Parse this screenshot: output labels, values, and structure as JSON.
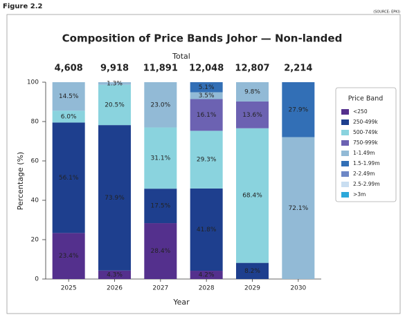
{
  "figure_label": "Figure 2.2",
  "source": "(SOURCE: EPKI)",
  "chart_data": {
    "type": "stacked_bar",
    "title": "Composition of Price Bands Johor — Non-landed",
    "x_label": "Year",
    "y_label": "Percentage (%)",
    "categories": [
      "2025",
      "2026",
      "2027",
      "2028",
      "2029",
      "2030"
    ],
    "totals": {
      "label": "Total",
      "values": [
        4608,
        9918,
        11891,
        12048,
        12807,
        2214
      ],
      "value_labels": [
        "4,608",
        "9,918",
        "11,891",
        "12,048",
        "12,807",
        "2,214"
      ]
    },
    "ylim": [
      0,
      100
    ],
    "yticks": [
      0,
      20,
      40,
      60,
      80,
      100
    ],
    "legend": {
      "title": "Price Band",
      "position": "right"
    },
    "series": [
      {
        "name": "<250",
        "color": "#54308d",
        "values": [
          23.4,
          4.3,
          28.4,
          4.2,
          null,
          null
        ],
        "value_labels": [
          "23.4%",
          "4.3%",
          "28.4%",
          "4.2%",
          null,
          null
        ]
      },
      {
        "name": "250-499k",
        "color": "#1e3f8e",
        "values": [
          56.1,
          73.9,
          17.5,
          41.8,
          8.2,
          null
        ],
        "value_labels": [
          "56.1%",
          "73.9%",
          "17.5%",
          "41.8%",
          "8.2%",
          null
        ]
      },
      {
        "name": "500-749k",
        "color": "#8ad3de",
        "values": [
          6.0,
          20.5,
          31.1,
          29.3,
          68.4,
          null
        ],
        "value_labels": [
          "6.0%",
          "20.5%",
          "31.1%",
          "29.3%",
          "68.4%",
          null
        ]
      },
      {
        "name": "750-999k",
        "color": "#6c62b2",
        "values": [
          null,
          null,
          null,
          16.1,
          13.6,
          null
        ],
        "value_labels": [
          null,
          null,
          null,
          "16.1%",
          "13.6%",
          null
        ]
      },
      {
        "name": "1-1.49m",
        "color": "#92bad6",
        "values": [
          14.5,
          1.3,
          23.0,
          3.5,
          9.8,
          72.1
        ],
        "value_labels": [
          "14.5%",
          "1.3%",
          "23.0%",
          "3.5%",
          "9.8%",
          "72.1%"
        ]
      },
      {
        "name": "1.5-1.99m",
        "color": "#326fb6",
        "values": [
          null,
          null,
          null,
          5.1,
          null,
          27.9
        ],
        "value_labels": [
          null,
          null,
          null,
          "5.1%",
          null,
          "27.9%"
        ]
      },
      {
        "name": "2-2.49m",
        "color": "#6e88c6",
        "values": [
          null,
          null,
          null,
          null,
          null,
          null
        ],
        "value_labels": [
          null,
          null,
          null,
          null,
          null,
          null
        ]
      },
      {
        "name": "2.5-2.99m",
        "color": "#c9def1",
        "values": [
          null,
          null,
          null,
          null,
          null,
          null
        ],
        "value_labels": [
          null,
          null,
          null,
          null,
          null,
          null
        ]
      },
      {
        "name": ">3m",
        "color": "#2ba8da",
        "values": [
          null,
          null,
          null,
          null,
          null,
          null
        ],
        "value_labels": [
          null,
          null,
          null,
          null,
          null,
          null
        ]
      }
    ]
  }
}
